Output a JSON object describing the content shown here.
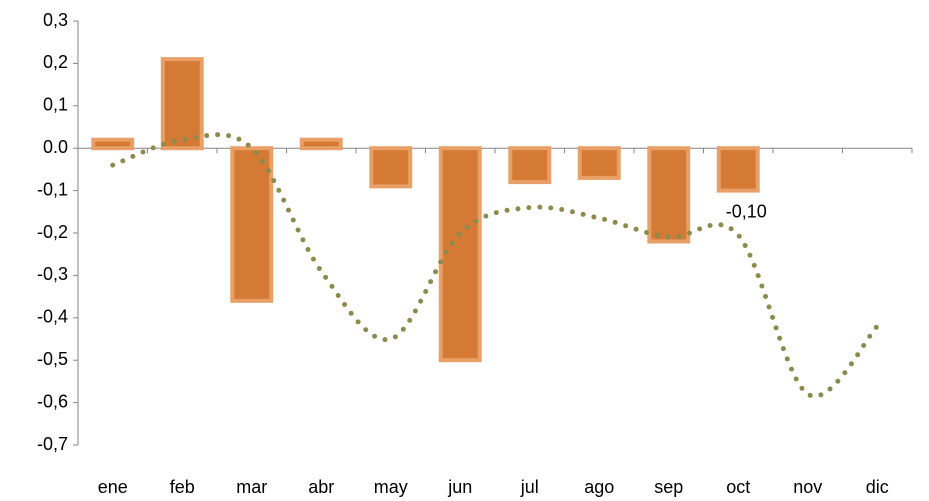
{
  "chart_data": {
    "type": "bar",
    "categories": [
      "ene",
      "feb",
      "mar",
      "abr",
      "may",
      "jun",
      "jul",
      "ago",
      "sep",
      "oct",
      "nov",
      "dic"
    ],
    "series": [
      {
        "type": "bar",
        "color": "#d47a34",
        "values": [
          0.02,
          0.21,
          -0.36,
          0.02,
          -0.09,
          -0.5,
          -0.08,
          -0.07,
          -0.22,
          -0.1,
          null,
          null
        ],
        "value_labels": [
          null,
          null,
          null,
          null,
          null,
          null,
          null,
          null,
          null,
          "-0,10",
          null,
          null
        ]
      },
      {
        "type": "line",
        "color": "#8c8a4c",
        "values": [
          -0.04,
          0.02,
          0.0,
          -0.29,
          -0.45,
          -0.2,
          -0.14,
          -0.165,
          -0.21,
          -0.205,
          -0.58,
          -0.42
        ]
      }
    ],
    "ylim": [
      -0.7,
      0.3
    ],
    "yticks": [
      {
        "value": -0.7,
        "label": "-0,7"
      },
      {
        "value": -0.6,
        "label": "-0,6"
      },
      {
        "value": -0.5,
        "label": "-0,5"
      },
      {
        "value": -0.4,
        "label": "-0,4"
      },
      {
        "value": -0.3,
        "label": "-0,3"
      },
      {
        "value": -0.2,
        "label": "-0,2"
      },
      {
        "value": -0.1,
        "label": "-0,1"
      },
      {
        "value": 0,
        "label": "0.0"
      },
      {
        "value": 0.1,
        "label": "0,1"
      },
      {
        "value": 0.2,
        "label": "0,2"
      },
      {
        "value": 0.3,
        "label": "0,3"
      }
    ]
  }
}
